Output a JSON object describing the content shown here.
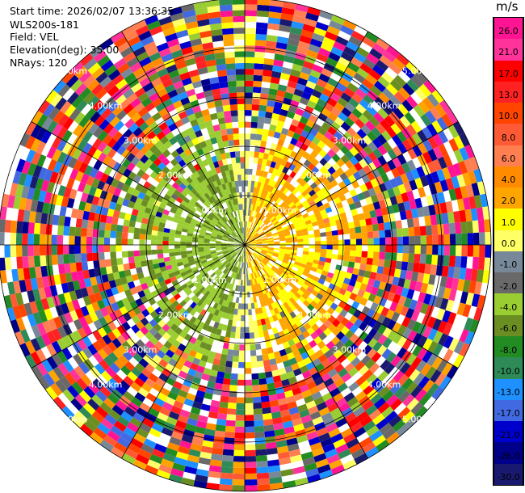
{
  "header": {
    "start_time": "Start time: 2026/02/07 13:36:35",
    "instrument": "WLS200s-181",
    "field": "Field: VEL",
    "elevation": "Elevation(deg): 35.00",
    "nrays": "NRays: 120"
  },
  "colorbar": {
    "unit": "m/s",
    "ticks": [
      "26.0",
      "21.0",
      "17.0",
      "13.0",
      "10.0",
      "8.0",
      "6.0",
      "4.0",
      "2.0",
      "1.0",
      "0.0",
      "-1.0",
      "-2.0",
      "-4.0",
      "-6.0",
      "-8.0",
      "-10.0",
      "-13.0",
      "-17.0",
      "-21.0",
      "-26.0",
      "-30.0"
    ],
    "colors": [
      "#ff1493",
      "#ff3399",
      "#ff0000",
      "#ff2222",
      "#ff4500",
      "#ff5a36",
      "#ff7f50",
      "#ff8c00",
      "#ffa500",
      "#ffff00",
      "#ffff66",
      "#778899",
      "#696969",
      "#9acd32",
      "#6b8e23",
      "#228b22",
      "#2e8b57",
      "#1e90ff",
      "#4169e1",
      "#0000cd",
      "#00008b",
      "#191970"
    ]
  },
  "map": {
    "range_rings_km": [
      1,
      2,
      3,
      4,
      5
    ],
    "range_labels": [
      "1.00km",
      "2.00km",
      "3.00km",
      "4.00km",
      "5.00km"
    ],
    "max_range_km": 5.0,
    "nrays": 120
  }
}
